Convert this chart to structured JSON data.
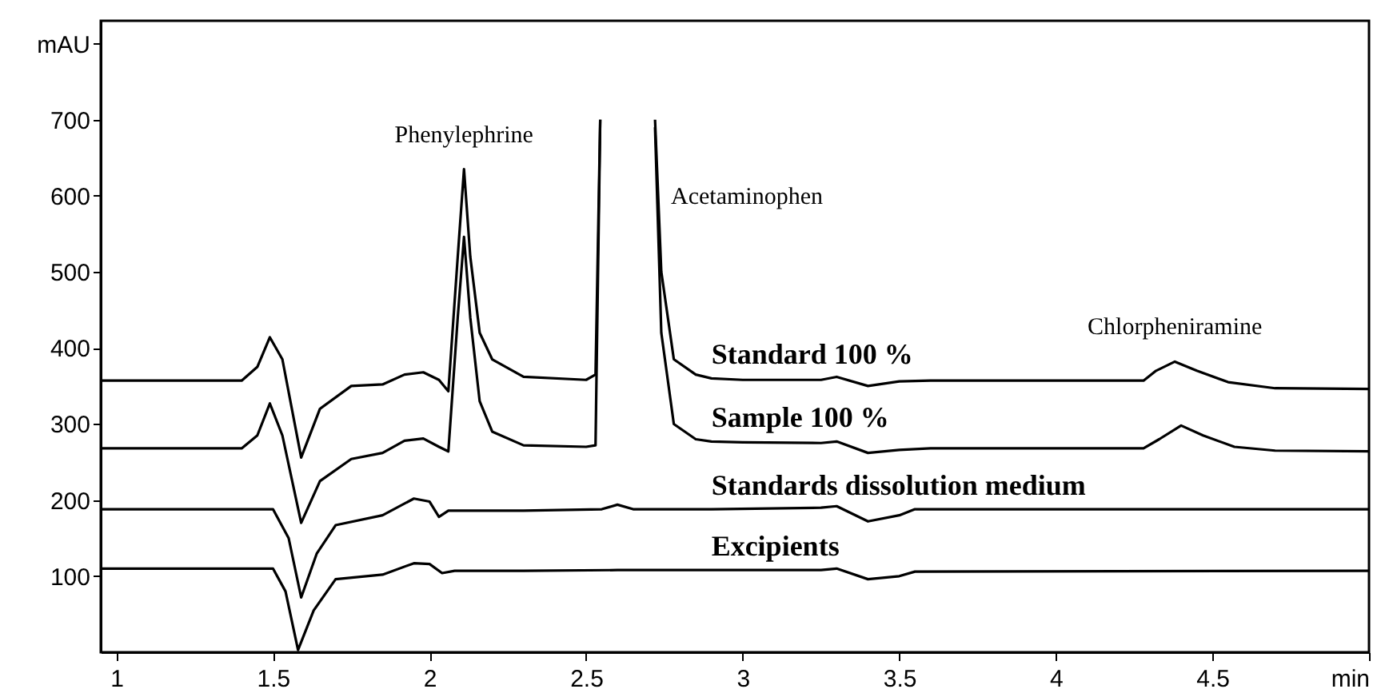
{
  "chart_data": {
    "type": "line",
    "xlim": [
      0.95,
      5
    ],
    "xticks": [
      1,
      1.5,
      2,
      2.5,
      3,
      3.5,
      4,
      4.5,
      {
        "value": 5,
        "label": "min"
      }
    ],
    "ylim": [
      0,
      830
    ],
    "yticks": [
      100,
      200,
      300,
      400,
      500,
      600,
      700,
      {
        "value": 800,
        "label": "mAU"
      }
    ],
    "grid": false,
    "legend": false,
    "marker": "none",
    "line_style": "solid",
    "annotations": [
      {
        "text": "Phenylephrine",
        "x": 2.11,
        "y": 635
      },
      {
        "text": "Acetaminophen",
        "x": 2.73,
        "y": 600
      },
      {
        "text": "Chlorpheniramine",
        "x": 4.38,
        "y": 382
      }
    ],
    "series": [
      {
        "name": "Standard 100 %",
        "color": "#000000",
        "x": [
          0.95,
          1.4,
          1.45,
          1.49,
          1.53,
          1.59,
          1.65,
          1.75,
          1.85,
          1.92,
          1.98,
          2.03,
          2.06,
          2.09,
          2.11,
          2.13,
          2.16,
          2.2,
          2.3,
          2.5,
          2.53,
          2.545,
          2.55,
          2.71,
          2.72,
          2.74,
          2.78,
          2.85,
          2.9,
          3.0,
          3.25,
          3.3,
          3.4,
          3.5,
          3.6,
          4.0,
          4.28,
          4.32,
          4.38,
          4.45,
          4.55,
          4.7,
          5.0
        ],
        "values": [
          357,
          357,
          375,
          414,
          385,
          256,
          320,
          350,
          352,
          365,
          368,
          358,
          343,
          520,
          635,
          520,
          420,
          385,
          362,
          358,
          365,
          700,
          null,
          null,
          700,
          500,
          385,
          365,
          360,
          358,
          358,
          362,
          350,
          356,
          357,
          357,
          357,
          370,
          382,
          370,
          355,
          347,
          346
        ]
      },
      {
        "name": "Sample 100 %",
        "color": "#000000",
        "x": [
          0.95,
          1.4,
          1.45,
          1.49,
          1.53,
          1.59,
          1.65,
          1.75,
          1.85,
          1.92,
          1.98,
          2.03,
          2.06,
          2.09,
          2.11,
          2.13,
          2.16,
          2.2,
          2.3,
          2.5,
          2.53,
          2.545,
          2.55,
          2.71,
          2.72,
          2.74,
          2.78,
          2.85,
          2.9,
          3.0,
          3.25,
          3.3,
          3.4,
          3.5,
          3.6,
          4.0,
          4.28,
          4.33,
          4.4,
          4.47,
          4.57,
          4.7,
          5.0
        ],
        "values": [
          268,
          268,
          285,
          327,
          285,
          170,
          225,
          254,
          262,
          278,
          281,
          270,
          264,
          440,
          546,
          440,
          330,
          290,
          272,
          270,
          272,
          700,
          null,
          null,
          690,
          420,
          300,
          280,
          277,
          276,
          275,
          277,
          262,
          266,
          268,
          268,
          268,
          280,
          298,
          285,
          270,
          265,
          264
        ]
      },
      {
        "name": "Standards dissolution medium",
        "color": "#000000",
        "x": [
          0.95,
          1.5,
          1.55,
          1.59,
          1.64,
          1.7,
          1.85,
          1.95,
          2.0,
          2.03,
          2.06,
          2.3,
          2.55,
          2.6,
          2.65,
          2.9,
          3.25,
          3.3,
          3.4,
          3.5,
          3.55,
          5.0
        ],
        "values": [
          188,
          188,
          150,
          72,
          130,
          167,
          180,
          202,
          198,
          178,
          186,
          186,
          188,
          194,
          188,
          188,
          190,
          192,
          172,
          180,
          188,
          188
        ]
      },
      {
        "name": "Excipients",
        "color": "#000000",
        "x": [
          0.95,
          1.5,
          1.54,
          1.58,
          1.63,
          1.7,
          1.85,
          1.95,
          2.0,
          2.04,
          2.08,
          2.3,
          2.6,
          2.9,
          3.25,
          3.3,
          3.4,
          3.5,
          3.55,
          5.0
        ],
        "values": [
          110,
          110,
          80,
          3,
          55,
          96,
          102,
          117,
          116,
          104,
          107,
          107,
          108,
          108,
          108,
          110,
          96,
          100,
          106,
          107
        ]
      }
    ]
  }
}
